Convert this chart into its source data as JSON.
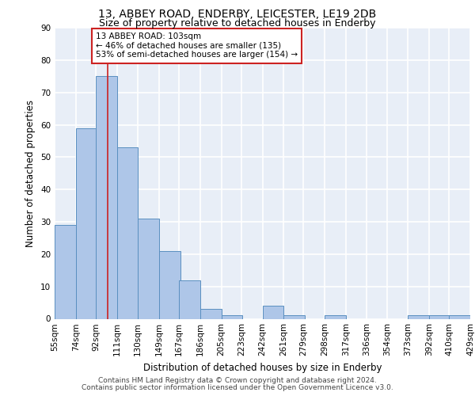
{
  "title1": "13, ABBEY ROAD, ENDERBY, LEICESTER, LE19 2DB",
  "title2": "Size of property relative to detached houses in Enderby",
  "xlabel": "Distribution of detached houses by size in Enderby",
  "ylabel": "Number of detached properties",
  "footer1": "Contains HM Land Registry data © Crown copyright and database right 2024.",
  "footer2": "Contains public sector information licensed under the Open Government Licence v3.0.",
  "bins": [
    55,
    74,
    92,
    111,
    130,
    149,
    167,
    186,
    205,
    223,
    242,
    261,
    279,
    298,
    317,
    336,
    354,
    373,
    392,
    410,
    429
  ],
  "bin_labels": [
    "55sqm",
    "74sqm",
    "92sqm",
    "111sqm",
    "130sqm",
    "149sqm",
    "167sqm",
    "186sqm",
    "205sqm",
    "223sqm",
    "242sqm",
    "261sqm",
    "279sqm",
    "298sqm",
    "317sqm",
    "336sqm",
    "354sqm",
    "373sqm",
    "392sqm",
    "410sqm",
    "429sqm"
  ],
  "values": [
    29,
    59,
    75,
    53,
    31,
    21,
    12,
    3,
    1,
    0,
    4,
    1,
    0,
    1,
    0,
    0,
    0,
    1,
    1,
    1
  ],
  "bar_color": "#aec6e8",
  "bar_edge_color": "#5a8fc0",
  "vline_x": 103,
  "vline_color": "#cc2222",
  "annotation_text": "13 ABBEY ROAD: 103sqm\n← 46% of detached houses are smaller (135)\n53% of semi-detached houses are larger (154) →",
  "annotation_box_color": "#ffffff",
  "annotation_box_edge_color": "#cc2222",
  "ylim": [
    0,
    90
  ],
  "yticks": [
    0,
    10,
    20,
    30,
    40,
    50,
    60,
    70,
    80,
    90
  ],
  "background_color": "#e8eef7",
  "grid_color": "#ffffff",
  "title1_fontsize": 10,
  "title2_fontsize": 9,
  "xlabel_fontsize": 8.5,
  "ylabel_fontsize": 8.5,
  "tick_fontsize": 7.5,
  "annotation_fontsize": 7.5,
  "footer_fontsize": 6.5
}
